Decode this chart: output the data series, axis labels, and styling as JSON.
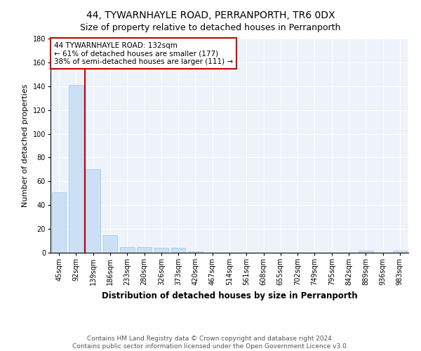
{
  "title1": "44, TYWARNHAYLE ROAD, PERRANPORTH, TR6 0DX",
  "title2": "Size of property relative to detached houses in Perranporth",
  "xlabel": "Distribution of detached houses by size in Perranporth",
  "ylabel": "Number of detached properties",
  "bar_labels": [
    "45sqm",
    "92sqm",
    "139sqm",
    "186sqm",
    "233sqm",
    "280sqm",
    "326sqm",
    "373sqm",
    "420sqm",
    "467sqm",
    "514sqm",
    "561sqm",
    "608sqm",
    "655sqm",
    "702sqm",
    "749sqm",
    "795sqm",
    "842sqm",
    "889sqm",
    "936sqm",
    "983sqm"
  ],
  "bar_values": [
    51,
    141,
    70,
    15,
    5,
    5,
    4,
    4,
    1,
    0,
    0,
    0,
    0,
    0,
    0,
    0,
    0,
    0,
    2,
    0,
    2
  ],
  "bar_color": "#cce0f5",
  "bar_edge_color": "#a0c4e8",
  "property_line_color": "#cc0000",
  "annotation_text": "44 TYWARNHAYLE ROAD: 132sqm\n← 61% of detached houses are smaller (177)\n38% of semi-detached houses are larger (111) →",
  "annotation_box_color": "white",
  "annotation_box_edge_color": "#cc0000",
  "ylim": [
    0,
    180
  ],
  "yticks": [
    0,
    20,
    40,
    60,
    80,
    100,
    120,
    140,
    160,
    180
  ],
  "background_color": "#eef3fb",
  "grid_color": "white",
  "footer_text": "Contains HM Land Registry data © Crown copyright and database right 2024.\nContains public sector information licensed under the Open Government Licence v3.0.",
  "title1_fontsize": 10,
  "title2_fontsize": 9,
  "xlabel_fontsize": 8.5,
  "ylabel_fontsize": 8,
  "tick_fontsize": 7,
  "annotation_fontsize": 7.5,
  "footer_fontsize": 6.5
}
